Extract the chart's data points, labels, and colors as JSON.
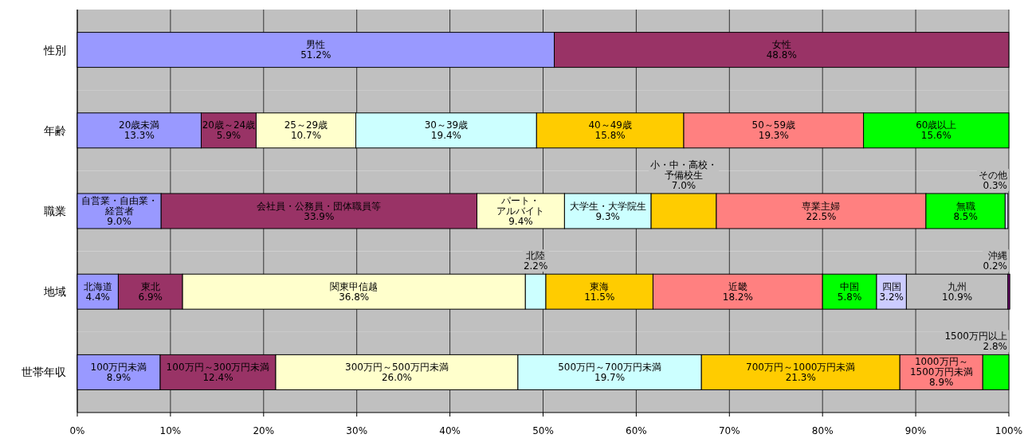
{
  "chart_data": [
    {
      "type": "bar",
      "orientation": "horizontal",
      "stacked": true,
      "categories": [
        "性別"
      ],
      "xlim": [
        0,
        100
      ],
      "xticks": [
        {
          "value": 0,
          "label": null
        },
        {
          "value": 10,
          "label": null
        },
        {
          "value": 20,
          "label": null
        },
        {
          "value": 30,
          "label": null
        },
        {
          "value": 40,
          "label": null
        },
        {
          "value": 50,
          "label": null
        },
        {
          "value": 60,
          "label": null
        },
        {
          "value": 70,
          "label": null
        },
        {
          "value": 80,
          "label": null
        },
        {
          "value": 90,
          "label": null
        },
        {
          "value": 100,
          "label": null
        }
      ],
      "grid": "x",
      "tick_labels": "y",
      "series": [
        {
          "name": "男性",
          "color": "#9999ff",
          "values": [
            51.2
          ],
          "value_labels": [
            "51.2%"
          ]
        },
        {
          "name": "女性",
          "color": "#993366",
          "values": [
            48.8
          ],
          "value_labels": [
            "48.8%"
          ]
        }
      ]
    },
    {
      "type": "bar",
      "orientation": "horizontal",
      "stacked": true,
      "categories": [
        "年齢"
      ],
      "xlim": [
        0,
        100
      ],
      "xticks": [
        {
          "value": 0,
          "label": null
        },
        {
          "value": 10,
          "label": null
        },
        {
          "value": 20,
          "label": null
        },
        {
          "value": 30,
          "label": null
        },
        {
          "value": 40,
          "label": null
        },
        {
          "value": 50,
          "label": null
        },
        {
          "value": 60,
          "label": null
        },
        {
          "value": 70,
          "label": null
        },
        {
          "value": 80,
          "label": null
        },
        {
          "value": 90,
          "label": null
        },
        {
          "value": 100,
          "label": null
        }
      ],
      "grid": "x",
      "tick_labels": "y",
      "series": [
        {
          "name": "20歳未満",
          "color": "#9999ff",
          "values": [
            13.3
          ],
          "value_labels": [
            "13.3%"
          ]
        },
        {
          "name": "20歳～24歳",
          "color": "#993366",
          "values": [
            5.9
          ],
          "value_labels": [
            "5.9%"
          ]
        },
        {
          "name": "25～29歳",
          "color": "#ffffcc",
          "values": [
            10.7
          ],
          "value_labels": [
            "10.7%"
          ]
        },
        {
          "name": "30～39歳",
          "color": "#ccffff",
          "values": [
            19.4
          ],
          "value_labels": [
            "19.4%"
          ]
        },
        {
          "name": "40～49歳",
          "color": "#ffcc00",
          "values": [
            15.8
          ],
          "value_labels": [
            "15.8%"
          ]
        },
        {
          "name": "50～59歳",
          "color": "#ff8080",
          "values": [
            19.3
          ],
          "value_labels": [
            "19.3%"
          ]
        },
        {
          "name": "60歳以上",
          "color": "#00ff00",
          "values": [
            15.6
          ],
          "value_labels": [
            "15.6%"
          ]
        }
      ]
    },
    {
      "type": "bar",
      "orientation": "horizontal",
      "stacked": true,
      "categories": [
        "職業"
      ],
      "xlim": [
        0,
        100
      ],
      "xticks": [
        {
          "value": 0,
          "label": null
        },
        {
          "value": 10,
          "label": null
        },
        {
          "value": 20,
          "label": null
        },
        {
          "value": 30,
          "label": null
        },
        {
          "value": 40,
          "label": null
        },
        {
          "value": 50,
          "label": null
        },
        {
          "value": 60,
          "label": null
        },
        {
          "value": 70,
          "label": null
        },
        {
          "value": 80,
          "label": null
        },
        {
          "value": 90,
          "label": null
        },
        {
          "value": 100,
          "label": null
        }
      ],
      "grid": "x",
      "tick_labels": "y",
      "series": [
        {
          "name": "自営業・自由業・経営者",
          "color": "#9999ff",
          "values": [
            9.0
          ],
          "value_labels": [
            "9.0%"
          ]
        },
        {
          "name": "会社員・公務員・団体職員等",
          "color": "#993366",
          "values": [
            33.9
          ],
          "value_labels": [
            "33.9%"
          ]
        },
        {
          "name": "パート・アルバイト",
          "color": "#ffffcc",
          "values": [
            9.4
          ],
          "value_labels": [
            "9.4%"
          ]
        },
        {
          "name": "大学生・大学院生",
          "color": "#ccffff",
          "values": [
            9.3
          ],
          "value_labels": [
            "9.3%"
          ]
        },
        {
          "name": "小・中・高校・予備校生",
          "color": "#ffcc00",
          "values": [
            7.0
          ],
          "value_labels": [
            "7.0%"
          ]
        },
        {
          "name": "専業主婦",
          "color": "#ff8080",
          "values": [
            22.5
          ],
          "value_labels": [
            "22.5%"
          ]
        },
        {
          "name": "無職",
          "color": "#00ff00",
          "values": [
            8.5
          ],
          "value_labels": [
            "8.5%"
          ]
        },
        {
          "name": "その他",
          "color": "#ccccff",
          "values": [
            0.3
          ],
          "value_labels": [
            "0.3%"
          ]
        }
      ]
    },
    {
      "type": "bar",
      "orientation": "horizontal",
      "stacked": true,
      "categories": [
        "地域"
      ],
      "xlim": [
        0,
        100
      ],
      "xticks": [
        {
          "value": 0,
          "label": null
        },
        {
          "value": 10,
          "label": null
        },
        {
          "value": 20,
          "label": null
        },
        {
          "value": 30,
          "label": null
        },
        {
          "value": 40,
          "label": null
        },
        {
          "value": 50,
          "label": null
        },
        {
          "value": 60,
          "label": null
        },
        {
          "value": 70,
          "label": null
        },
        {
          "value": 80,
          "label": null
        },
        {
          "value": 90,
          "label": null
        },
        {
          "value": 100,
          "label": null
        }
      ],
      "grid": "x",
      "tick_labels": "y",
      "series": [
        {
          "name": "北海道",
          "color": "#9999ff",
          "values": [
            4.4
          ],
          "value_labels": [
            "4.4%"
          ]
        },
        {
          "name": "東北",
          "color": "#993366",
          "values": [
            6.9
          ],
          "value_labels": [
            "6.9%"
          ]
        },
        {
          "name": "関東甲信越",
          "color": "#ffffcc",
          "values": [
            36.8
          ],
          "value_labels": [
            "36.8%"
          ]
        },
        {
          "name": "北陸",
          "color": "#ccffff",
          "values": [
            2.2
          ],
          "value_labels": [
            "2.2%"
          ]
        },
        {
          "name": "東海",
          "color": "#ffcc00",
          "values": [
            11.5
          ],
          "value_labels": [
            "11.5%"
          ]
        },
        {
          "name": "近畿",
          "color": "#ff8080",
          "values": [
            18.2
          ],
          "value_labels": [
            "18.2%"
          ]
        },
        {
          "name": "中国",
          "color": "#00ff00",
          "values": [
            5.8
          ],
          "value_labels": [
            "5.8%"
          ]
        },
        {
          "name": "四国",
          "color": "#ccccff",
          "values": [
            3.2
          ],
          "value_labels": [
            "3.2%"
          ]
        },
        {
          "name": "九州",
          "color": "#c0c0c0",
          "values": [
            10.9
          ],
          "value_labels": [
            "10.9%"
          ]
        },
        {
          "name": "沖縄",
          "color": "#800080",
          "values": [
            0.2
          ],
          "value_labels": [
            "0.2%"
          ]
        }
      ]
    },
    {
      "type": "bar",
      "orientation": "horizontal",
      "stacked": true,
      "categories": [
        "世帯年収"
      ],
      "xlim": [
        0,
        100
      ],
      "xticks": [
        {
          "value": 0,
          "label": "0%"
        },
        {
          "value": 10,
          "label": "10%"
        },
        {
          "value": 20,
          "label": "20%"
        },
        {
          "value": 30,
          "label": "30%"
        },
        {
          "value": 40,
          "label": "40%"
        },
        {
          "value": 50,
          "label": "50%"
        },
        {
          "value": 60,
          "label": "60%"
        },
        {
          "value": 70,
          "label": "70%"
        },
        {
          "value": 80,
          "label": "80%"
        },
        {
          "value": 90,
          "label": "90%"
        },
        {
          "value": 100,
          "label": "100%"
        }
      ],
      "grid": "x",
      "series": [
        {
          "name": "100万円未満",
          "color": "#9999ff",
          "values": [
            8.9
          ],
          "value_labels": [
            "8.9%"
          ]
        },
        {
          "name": "100万円～300万円未満",
          "color": "#993366",
          "values": [
            12.4
          ],
          "value_labels": [
            "12.4%"
          ]
        },
        {
          "name": "300万円～500万円未満",
          "color": "#ffffcc",
          "values": [
            26.0
          ],
          "value_labels": [
            "26.0%"
          ]
        },
        {
          "name": "500万円～700万円未満",
          "color": "#ccffff",
          "values": [
            19.7
          ],
          "value_labels": [
            "19.7%"
          ]
        },
        {
          "name": "700万円～1000万円未満",
          "color": "#ffcc00",
          "values": [
            21.3
          ],
          "value_labels": [
            "21.3%"
          ]
        },
        {
          "name": "1000万円～1500万円未満",
          "color": "#ff8080",
          "values": [
            8.9
          ],
          "value_labels": [
            "8.9%"
          ]
        },
        {
          "name": "1500万円以上",
          "color": "#00ff00",
          "values": [
            2.8
          ],
          "value_labels": [
            "2.8%"
          ]
        }
      ]
    }
  ]
}
